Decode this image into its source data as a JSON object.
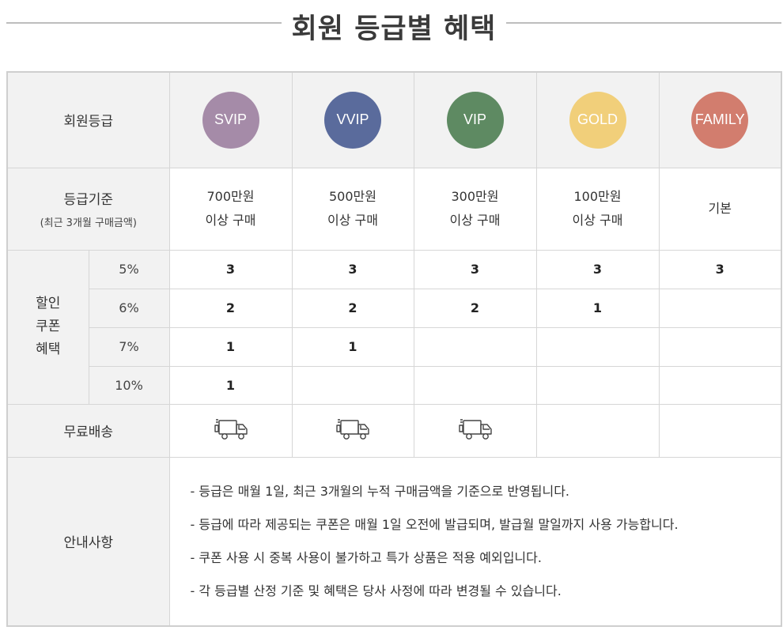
{
  "title": "회원 등급별 혜택",
  "header": {
    "label": "회원등급",
    "grades": [
      {
        "name": "SVIP",
        "color": "#a58ba8"
      },
      {
        "name": "VVIP",
        "color": "#5a6b9c"
      },
      {
        "name": "VIP",
        "color": "#5e8a62"
      },
      {
        "name": "GOLD",
        "color": "#f1cf7a"
      },
      {
        "name": "FAMILY",
        "color": "#d27d6e"
      }
    ]
  },
  "criteria": {
    "label": "등급기준",
    "sublabel": "(최근 3개월 구매금액)",
    "values": [
      {
        "line1": "700만원",
        "line2": "이상 구매"
      },
      {
        "line1": "500만원",
        "line2": "이상 구매"
      },
      {
        "line1": "300만원",
        "line2": "이상 구매"
      },
      {
        "line1": "100만원",
        "line2": "이상 구매"
      },
      {
        "line1": "기본",
        "line2": ""
      }
    ]
  },
  "coupon": {
    "label_lines": [
      "할인",
      "쿠폰",
      "혜택"
    ],
    "rows": [
      {
        "rate": "5%",
        "counts": [
          "3",
          "3",
          "3",
          "3",
          "3"
        ]
      },
      {
        "rate": "6%",
        "counts": [
          "2",
          "2",
          "2",
          "1",
          ""
        ]
      },
      {
        "rate": "7%",
        "counts": [
          "1",
          "1",
          "",
          "",
          ""
        ]
      },
      {
        "rate": "10%",
        "counts": [
          "1",
          "",
          "",
          "",
          ""
        ]
      }
    ]
  },
  "shipping": {
    "label": "무료배송",
    "icon": "delivery-truck-icon",
    "available": [
      true,
      true,
      true,
      false,
      false
    ]
  },
  "notice": {
    "label": "안내사항",
    "items": [
      "- 등급은 매월 1일, 최근 3개월의 누적 구매금액을 기준으로 반영됩니다.",
      "- 등급에 따라 제공되는 쿠폰은 매월 1일 오전에 발급되며, 발급월 말일까지 사용 가능합니다.",
      "- 쿠폰 사용 시 중복 사용이 불가하고 특가 상품은 적용 예외입니다.",
      "- 각 등급별 산정 기준 및 혜택은 당사 사정에 따라 변경될 수 있습니다."
    ]
  }
}
